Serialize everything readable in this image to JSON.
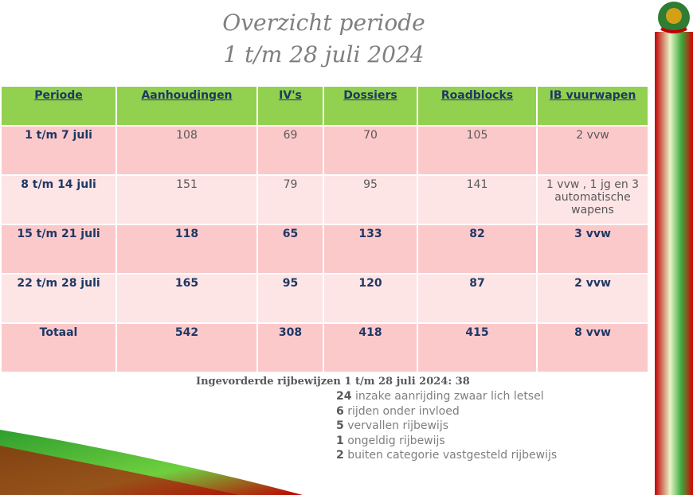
{
  "header": {
    "title_line1": "Overzicht  periode",
    "title_line2": "1 t/m 28 juli 2024"
  },
  "table": {
    "columns": [
      "Periode",
      "Aanhoudingen",
      "IV's",
      "Dossiers",
      "Roadblocks",
      "IB vuurwapen"
    ],
    "rows": [
      [
        "1 t/m 7 juli",
        "108",
        "69",
        "70",
        "105",
        "2 vvw"
      ],
      [
        "8 t/m 14 juli",
        "151",
        "79",
        "95",
        "141",
        "1 vvw , 1 jg en 3 automatische wapens"
      ],
      [
        "15 t/m 21 juli",
        "118",
        "65",
        "133",
        "82",
        "3 vvw"
      ],
      [
        "22 t/m 28 juli",
        "165",
        "95",
        "120",
        "87",
        "2 vvw"
      ],
      [
        "Totaal",
        "542",
        "308",
        "418",
        "415",
        "8 vvw"
      ]
    ]
  },
  "summary": {
    "heading": "Ingevorderde rijbewijzen 1 t/m 28 juli 2024: 38",
    "items": [
      {
        "count": "24",
        "text": "inzake aanrijding zwaar lich letsel"
      },
      {
        "count": "6",
        "text": "rijden onder invloed"
      },
      {
        "count": "5",
        "text": "vervallen rijbewijs"
      },
      {
        "count": "1",
        "text": "ongeldig rijbewijs"
      },
      {
        "count": "2",
        "text": "buiten categorie vastgesteld rijbewijs"
      }
    ]
  }
}
